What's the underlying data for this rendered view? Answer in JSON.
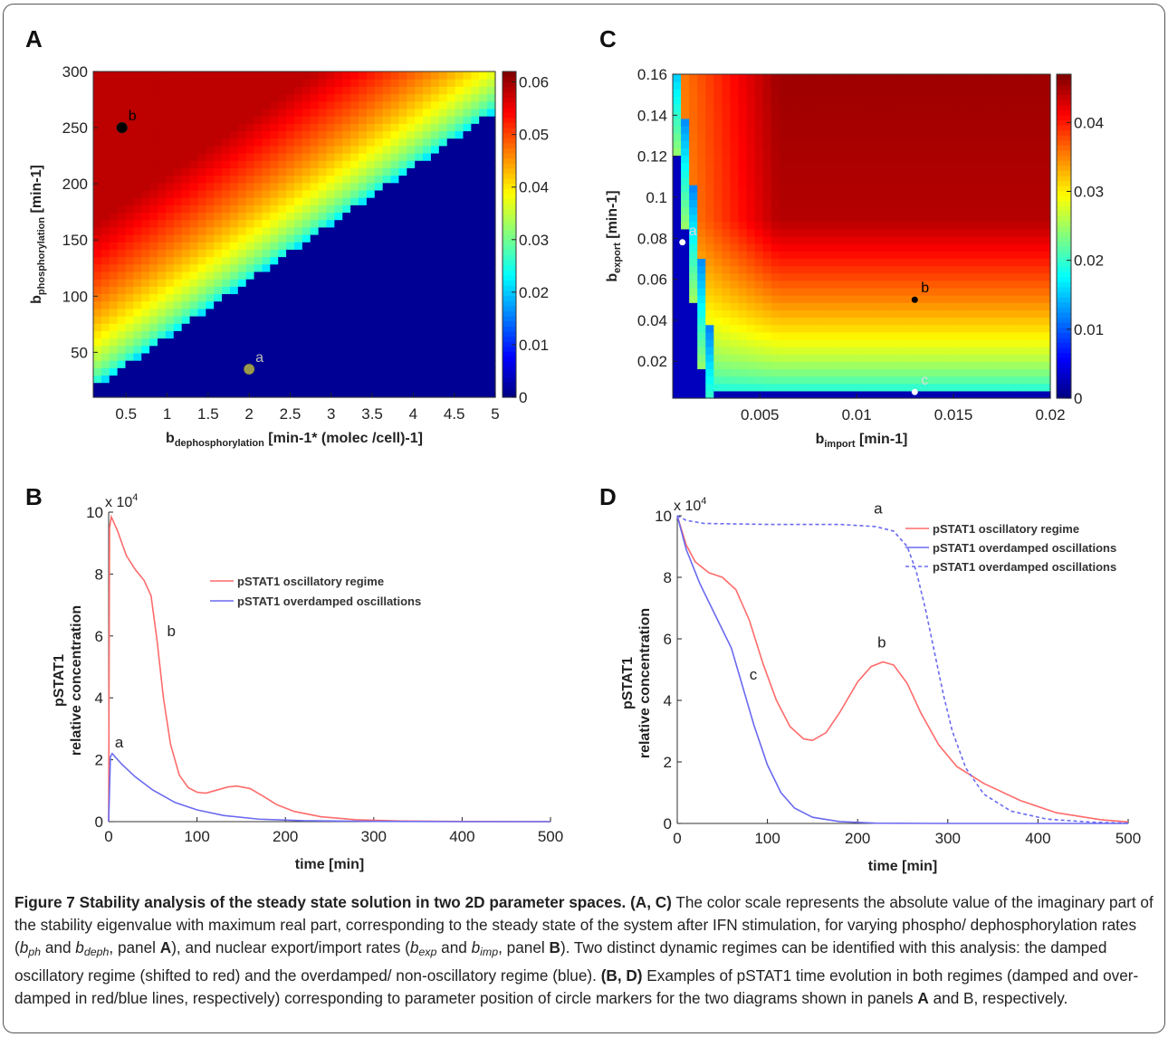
{
  "chart_data": [
    {
      "panel": "A",
      "type": "heatmap",
      "xlabel_main": "b",
      "xlabel_sub": "dephosphorylation",
      "xlabel_unit": "[min-1* (molec /cell)-1]",
      "ylabel_main": "b",
      "ylabel_sub": "phosphorylation",
      "ylabel_unit": "[min-1]",
      "xlim": [
        0.1,
        5
      ],
      "ylim": [
        10,
        300
      ],
      "xticks": [
        "0.5",
        "1",
        "1.5",
        "2",
        "2.5",
        "3",
        "3.5",
        "4",
        "4.5",
        "5"
      ],
      "yticks": [
        "50",
        "100",
        "150",
        "200",
        "250",
        "300"
      ],
      "colorbar_ticks": [
        "0",
        "0.01",
        "0.02",
        "0.03",
        "0.04",
        "0.05",
        "0.06"
      ],
      "colorbar_range": [
        0,
        0.062
      ],
      "markers": [
        {
          "label": "b",
          "x": 0.45,
          "y": 250,
          "color": "#000000"
        },
        {
          "label": "a",
          "x": 2.0,
          "y": 35,
          "color": "#9a9a4e"
        }
      ]
    },
    {
      "panel": "C",
      "type": "heatmap",
      "xlabel_main": "b",
      "xlabel_sub": "import",
      "xlabel_unit": "[min-1]",
      "ylabel_main": "b",
      "ylabel_sub": "export",
      "ylabel_unit": "[min-1]",
      "xlim": [
        0.0005,
        0.02
      ],
      "ylim": [
        0.002,
        0.16
      ],
      "xticks": [
        "0.005",
        "0.01",
        "0.015",
        "0.02"
      ],
      "yticks": [
        "0.02",
        "0.04",
        "0.06",
        "0.08",
        "0.1",
        "0.12",
        "0.14",
        "0.16"
      ],
      "colorbar_ticks": [
        "0",
        "0.01",
        "0.02",
        "0.03",
        "0.04"
      ],
      "colorbar_range": [
        0,
        0.047
      ],
      "markers": [
        {
          "label": "a",
          "x": 0.001,
          "y": 0.078,
          "color": "#ffffff"
        },
        {
          "label": "b",
          "x": 0.013,
          "y": 0.05,
          "color": "#000000"
        },
        {
          "label": "c",
          "x": 0.013,
          "y": 0.005,
          "color": "#ffffff"
        }
      ]
    },
    {
      "panel": "B",
      "type": "line",
      "xlabel": "time [min]",
      "ylabel": "pSTAT1",
      "ylabel2": "relative concentration",
      "xlim": [
        0,
        500
      ],
      "ylim": [
        0,
        10
      ],
      "exponent": "x 10",
      "exponent_power": "4",
      "xticks": [
        "0",
        "100",
        "200",
        "300",
        "400",
        "500"
      ],
      "yticks": [
        "0",
        "2",
        "4",
        "6",
        "8",
        "10"
      ],
      "series": [
        {
          "name": "pSTAT1 oscillatory regime",
          "color": "#ff6b6b",
          "dash": false,
          "label": "b",
          "points": [
            [
              0,
              0
            ],
            [
              1,
              9.5
            ],
            [
              3,
              9.85
            ],
            [
              10,
              9.4
            ],
            [
              20,
              8.6
            ],
            [
              30,
              8.15
            ],
            [
              40,
              7.8
            ],
            [
              48,
              7.3
            ],
            [
              55,
              5.8
            ],
            [
              62,
              4.0
            ],
            [
              70,
              2.5
            ],
            [
              80,
              1.5
            ],
            [
              90,
              1.1
            ],
            [
              100,
              0.95
            ],
            [
              110,
              0.92
            ],
            [
              120,
              1.0
            ],
            [
              135,
              1.12
            ],
            [
              145,
              1.15
            ],
            [
              160,
              1.07
            ],
            [
              175,
              0.82
            ],
            [
              190,
              0.55
            ],
            [
              210,
              0.33
            ],
            [
              240,
              0.16
            ],
            [
              280,
              0.06
            ],
            [
              330,
              0.02
            ],
            [
              400,
              0.005
            ],
            [
              500,
              0.0
            ]
          ]
        },
        {
          "name": "pSTAT1 overdamped oscillations",
          "color": "#6a6af0",
          "dash": false,
          "label": "a",
          "points": [
            [
              0,
              0
            ],
            [
              2,
              2.1
            ],
            [
              4,
              2.2
            ],
            [
              15,
              1.85
            ],
            [
              30,
              1.45
            ],
            [
              50,
              1.02
            ],
            [
              75,
              0.62
            ],
            [
              100,
              0.38
            ],
            [
              130,
              0.2
            ],
            [
              170,
              0.08
            ],
            [
              220,
              0.03
            ],
            [
              300,
              0.01
            ],
            [
              400,
              0.0
            ],
            [
              500,
              0.0
            ]
          ]
        }
      ]
    },
    {
      "panel": "D",
      "type": "line",
      "xlabel": "time [min]",
      "ylabel": "pSTAT1",
      "ylabel2": "relative concentration",
      "xlim": [
        0,
        500
      ],
      "ylim": [
        0,
        10
      ],
      "exponent": "x 10",
      "exponent_power": "4",
      "xticks": [
        "0",
        "100",
        "200",
        "300",
        "400",
        "500"
      ],
      "yticks": [
        "0",
        "2",
        "4",
        "6",
        "8",
        "10"
      ],
      "series": [
        {
          "name": "pSTAT1 oscillatory regime",
          "color": "#ff6b6b",
          "dash": false,
          "label": "b",
          "points": [
            [
              0,
              10
            ],
            [
              10,
              9.05
            ],
            [
              20,
              8.5
            ],
            [
              35,
              8.15
            ],
            [
              50,
              8.0
            ],
            [
              65,
              7.6
            ],
            [
              80,
              6.6
            ],
            [
              95,
              5.2
            ],
            [
              110,
              4.0
            ],
            [
              125,
              3.15
            ],
            [
              140,
              2.75
            ],
            [
              150,
              2.7
            ],
            [
              165,
              2.95
            ],
            [
              180,
              3.6
            ],
            [
              200,
              4.6
            ],
            [
              215,
              5.1
            ],
            [
              228,
              5.25
            ],
            [
              240,
              5.15
            ],
            [
              255,
              4.55
            ],
            [
              270,
              3.6
            ],
            [
              290,
              2.55
            ],
            [
              310,
              1.85
            ],
            [
              340,
              1.3
            ],
            [
              380,
              0.75
            ],
            [
              420,
              0.35
            ],
            [
              470,
              0.12
            ],
            [
              500,
              0.05
            ]
          ]
        },
        {
          "name": "pSTAT1 overdamped oscillations",
          "color": "#6a6af0",
          "dash": false,
          "label": "c",
          "points": [
            [
              0,
              10
            ],
            [
              10,
              8.9
            ],
            [
              25,
              7.8
            ],
            [
              45,
              6.6
            ],
            [
              60,
              5.7
            ],
            [
              72,
              4.5
            ],
            [
              85,
              3.2
            ],
            [
              100,
              1.9
            ],
            [
              115,
              1.0
            ],
            [
              130,
              0.5
            ],
            [
              150,
              0.2
            ],
            [
              180,
              0.06
            ],
            [
              220,
              0.01
            ],
            [
              300,
              0.0
            ],
            [
              500,
              0.0
            ]
          ]
        },
        {
          "name": "pSTAT1 overdamped oscillations",
          "color": "#6a6af0",
          "dash": true,
          "label": "a",
          "points": [
            [
              0,
              10
            ],
            [
              10,
              9.85
            ],
            [
              30,
              9.75
            ],
            [
              100,
              9.72
            ],
            [
              180,
              9.72
            ],
            [
              220,
              9.65
            ],
            [
              240,
              9.5
            ],
            [
              255,
              9.0
            ],
            [
              265,
              8.2
            ],
            [
              275,
              7.0
            ],
            [
              285,
              5.6
            ],
            [
              295,
              4.2
            ],
            [
              305,
              3.0
            ],
            [
              320,
              1.8
            ],
            [
              340,
              0.95
            ],
            [
              370,
              0.4
            ],
            [
              410,
              0.14
            ],
            [
              460,
              0.04
            ],
            [
              500,
              0.01
            ]
          ]
        }
      ]
    }
  ],
  "panel_letters": [
    "A",
    "C",
    "B",
    "D"
  ],
  "caption": {
    "title": "Figure 7 Stability analysis of the steady state solution in two 2D parameter spaces.",
    "ac_ref": "(A, C)",
    "ac_text_1": " The color scale represents the absolute value of the imaginary part of the stability eigenvalue with maximum real part, corresponding to the steady state of the system after IFN stimulation, for varying phospho/ dephosphorylation rates (",
    "b_ph": "b",
    "b_ph_sub": "ph",
    "and_1": " and ",
    "b_deph": "b",
    "b_deph_sub": "deph",
    "panel_a_1": ", panel ",
    "panel_a_letter": "A",
    "ac_text_2": "), and nuclear export/import rates (",
    "b_exp": "b",
    "b_exp_sub": "exp",
    "and_2": " and ",
    "b_imp": "b",
    "b_imp_sub": "imp",
    "panel_b_1": ", panel ",
    "panel_b_letter": "B",
    "ac_text_3": "). Two distinct dynamic regimes can be identified with this analysis: the damped oscillatory regime (shifted to red) and the overdamped/ non-oscillatory regime (blue). ",
    "bd_ref": "(B, D)",
    "bd_text_1": " Examples of pSTAT1 time evolution in both regimes (damped and over-damped in red/blue lines, respectively) corresponding to parameter position of circle markers for the two diagrams shown in panels ",
    "bd_panel_a": "A",
    "bd_text_2": " and B, respectively."
  }
}
